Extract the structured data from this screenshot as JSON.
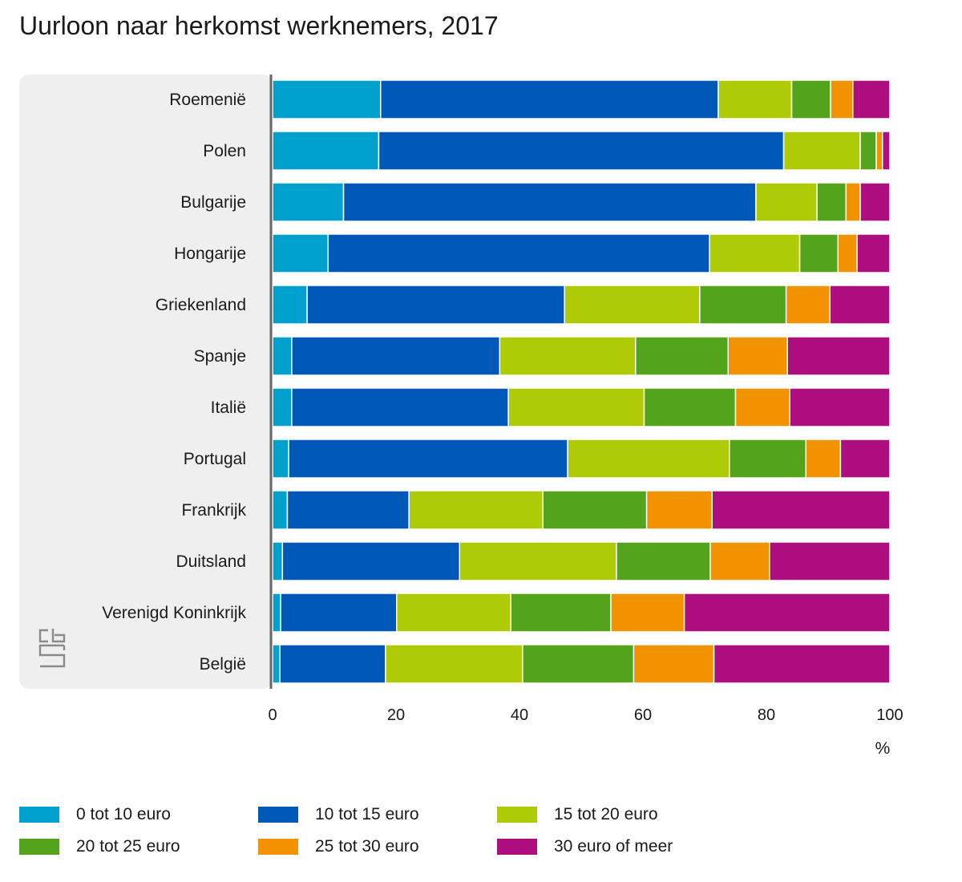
{
  "title": "Uurloon naar herkomst werknemers, 2017",
  "chart_data": {
    "type": "bar",
    "orientation": "horizontal",
    "stacked": true,
    "title": "Uurloon naar herkomst werknemers, 2017",
    "xlabel": "%",
    "ylabel": "",
    "xlim": [
      0,
      100
    ],
    "xticks": [
      "0",
      "20",
      "40",
      "60",
      "80",
      "100"
    ],
    "grid": false,
    "legend_position": "bottom",
    "categories": [
      "Roemenië",
      "Polen",
      "Bulgarije",
      "Hongarije",
      "Griekenland",
      "Spanje",
      "Italië",
      "Portugal",
      "Frankrijk",
      "Duitsland",
      "Verenigd Koninkrijk",
      "België"
    ],
    "series": [
      {
        "name": "0 tot 10 euro",
        "color": "#00a1cd",
        "values": [
          17.5,
          17.2,
          11.5,
          9.0,
          5.6,
          3.1,
          3.1,
          2.6,
          2.4,
          1.6,
          1.3,
          1.2
        ]
      },
      {
        "name": "10 tot 15 euro",
        "color": "#0058b8",
        "values": [
          54.7,
          65.6,
          66.8,
          61.8,
          41.7,
          33.7,
          35.1,
          45.2,
          19.7,
          28.7,
          18.8,
          17.1
        ]
      },
      {
        "name": "15 tot 20 euro",
        "color": "#afcb05",
        "values": [
          11.9,
          12.4,
          9.9,
          14.6,
          21.9,
          22.0,
          22.0,
          26.2,
          21.7,
          25.4,
          18.5,
          22.2
        ]
      },
      {
        "name": "20 tot 25 euro",
        "color": "#53a31d",
        "values": [
          6.3,
          2.6,
          4.7,
          6.2,
          14.0,
          15.0,
          14.8,
          12.4,
          16.8,
          15.2,
          16.2,
          18.0
        ]
      },
      {
        "name": "25 tot 30 euro",
        "color": "#f39200",
        "values": [
          3.6,
          1.0,
          2.3,
          3.1,
          7.1,
          9.6,
          8.8,
          5.6,
          10.6,
          9.6,
          11.9,
          13.0
        ]
      },
      {
        "name": "30 euro of meer",
        "color": "#af0e80",
        "values": [
          6.0,
          1.2,
          4.8,
          5.3,
          9.7,
          16.6,
          16.2,
          8.0,
          28.8,
          19.5,
          33.3,
          28.5
        ]
      }
    ]
  },
  "logo": {
    "icon": "cbs-logo-icon"
  }
}
